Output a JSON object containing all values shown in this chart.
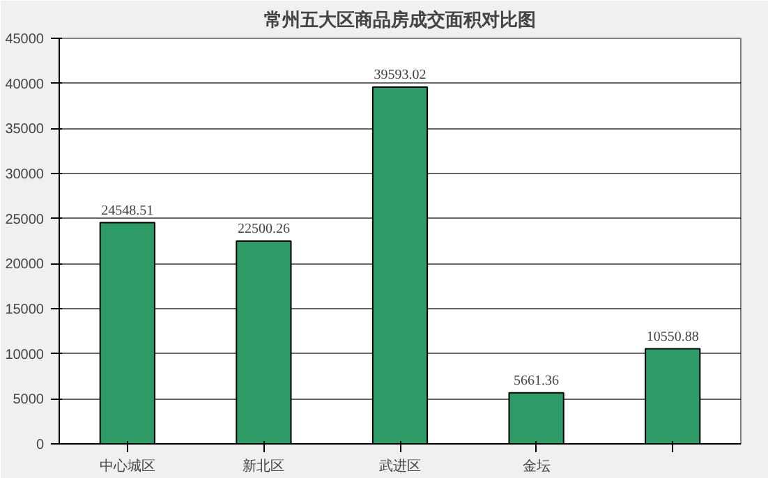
{
  "chart_data": {
    "type": "bar",
    "title": "常州五大区商品房成交面积对比图",
    "categories": [
      "中心城区",
      "新北区",
      "武进区",
      "金坛",
      null
    ],
    "values": [
      24548.51,
      22500.26,
      39593.02,
      5661.36,
      10550.88
    ],
    "color": "#2e9a66",
    "data_labels": true,
    "ylim": [
      0,
      45000
    ],
    "yticks": [
      0,
      5000,
      10000,
      15000,
      20000,
      25000,
      30000,
      35000,
      40000,
      45000
    ],
    "grid": "y"
  }
}
